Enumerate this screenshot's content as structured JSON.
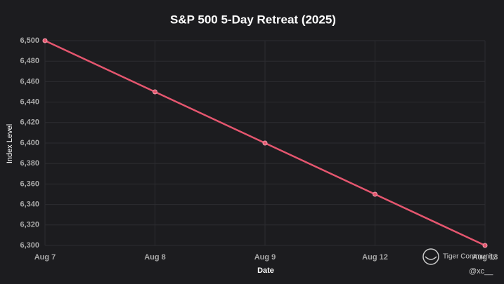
{
  "chart_data": {
    "type": "line",
    "title": "S&P 500 5-Day Retreat (2025)",
    "x_label": "Date",
    "y_label": "Index Level",
    "categories": [
      "Aug 7",
      "Aug 8",
      "Aug 9",
      "Aug 12",
      "Aug 13"
    ],
    "series": [
      {
        "name": "S&P 500",
        "color": "#e5566f",
        "values": [
          6500,
          6450,
          6400,
          6350,
          6300
        ]
      }
    ],
    "ylim": [
      6300,
      6500
    ],
    "yticks": [
      {
        "value": 6300,
        "label": "6,300"
      },
      {
        "value": 6320,
        "label": "6,320"
      },
      {
        "value": 6340,
        "label": "6,340"
      },
      {
        "value": 6360,
        "label": "6,360"
      },
      {
        "value": 6380,
        "label": "6,380"
      },
      {
        "value": 6400,
        "label": "6,400"
      },
      {
        "value": 6420,
        "label": "6,420"
      },
      {
        "value": 6440,
        "label": "6,440"
      },
      {
        "value": 6460,
        "label": "6,460"
      },
      {
        "value": 6480,
        "label": "6,480"
      },
      {
        "value": 6500,
        "label": "6,500"
      }
    ],
    "grid": true
  },
  "watermark": {
    "brand": "Tiger Community",
    "handle": "@xc__"
  }
}
